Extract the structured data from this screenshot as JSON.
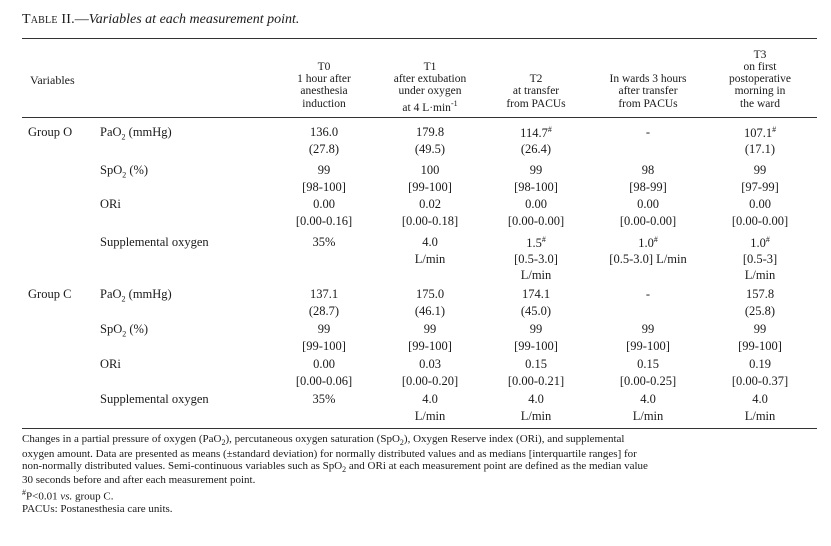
{
  "caption": {
    "label": "Table II.",
    "dash": "—",
    "title": "Variables at each measurement point."
  },
  "header": {
    "variables": "Variables",
    "columns": [
      {
        "lines": [
          "T0",
          "1 hour after",
          "anesthesia",
          "induction"
        ]
      },
      {
        "lines": [
          "T1",
          "after extubation",
          "under oxygen",
          "at 4 L·min⁻¹"
        ]
      },
      {
        "lines": [
          "T2",
          "at transfer",
          "from PACUs"
        ]
      },
      {
        "lines": [
          "In wards 3 hours",
          "after transfer",
          "from PACUs"
        ]
      },
      {
        "lines": [
          "T3",
          "on first",
          "postoperative",
          "morning in",
          "the ward"
        ]
      }
    ]
  },
  "groups": [
    {
      "label": "Group O",
      "rows": [
        {
          "label": "PaO₂ (mmHg)",
          "values": [
            [
              "136.0",
              "(27.8)"
            ],
            [
              "179.8",
              "(49.5)"
            ],
            [
              "114.7#",
              "(26.4)"
            ],
            [
              "-"
            ],
            [
              "107.1#",
              "(17.1)"
            ]
          ]
        },
        {
          "label": "SpO₂ (%)",
          "values": [
            [
              "99",
              "[98-100]"
            ],
            [
              "100",
              "[99-100]"
            ],
            [
              "99",
              "[98-100]"
            ],
            [
              "98",
              "[98-99]"
            ],
            [
              "99",
              "[97-99]"
            ]
          ]
        },
        {
          "label": "ORi",
          "values": [
            [
              "0.00",
              "[0.00-0.16]"
            ],
            [
              "0.02",
              "[0.00-0.18]"
            ],
            [
              "0.00",
              "[0.00-0.00]"
            ],
            [
              "0.00",
              "[0.00-0.00]"
            ],
            [
              "0.00",
              "[0.00-0.00]"
            ]
          ]
        },
        {
          "label": "Supplemental oxygen",
          "values": [
            [
              "35%"
            ],
            [
              "4.0",
              "L/min"
            ],
            [
              "1.5#",
              "[0.5-3.0]",
              "L/min"
            ],
            [
              "1.0#",
              "[0.5-3.0] L/min"
            ],
            [
              "1.0#",
              "[0.5-3]",
              "L/min"
            ]
          ]
        }
      ]
    },
    {
      "label": "Group C",
      "rows": [
        {
          "label": "PaO₂ (mmHg)",
          "values": [
            [
              "137.1",
              "(28.7)"
            ],
            [
              "175.0",
              "(46.1)"
            ],
            [
              "174.1",
              "(45.0)"
            ],
            [
              "-"
            ],
            [
              "157.8",
              "(25.8)"
            ]
          ]
        },
        {
          "label": "SpO₂ (%)",
          "values": [
            [
              "99",
              "[99-100]"
            ],
            [
              "99",
              "[99-100]"
            ],
            [
              "99",
              "[99-100]"
            ],
            [
              "99",
              "[99-100]"
            ],
            [
              "99",
              "[99-100]"
            ]
          ]
        },
        {
          "label": "ORi",
          "values": [
            [
              "0.00",
              "[0.00-0.06]"
            ],
            [
              "0.03",
              "[0.00-0.20]"
            ],
            [
              "0.15",
              "[0.00-0.21]"
            ],
            [
              "0.15",
              "[0.00-0.25]"
            ],
            [
              "0.19",
              "[0.00-0.37]"
            ]
          ]
        },
        {
          "label": "Supplemental oxygen",
          "values": [
            [
              "35%"
            ],
            [
              "4.0",
              "L/min"
            ],
            [
              "4.0",
              "L/min"
            ],
            [
              "4.0",
              "L/min"
            ],
            [
              "4.0",
              "L/min"
            ]
          ]
        }
      ]
    }
  ],
  "notes": [
    "Changes in a partial pressure of oxygen (PaO₂), percutaneous oxygen saturation (SpO₂), Oxygen Reserve index (ORi), and supplemental",
    "oxygen amount. Data are presented as means (±standard deviation) for normally distributed values and as medians [interquartile ranges] for",
    "non-normally distributed values. Semi-continuous variables such as SpO₂ and ORi at each measurement point are defined as the median value",
    "30 seconds before and after each measurement point.",
    "#P<0.01 vs. group C.",
    "PACUs: Postanesthesia care units."
  ]
}
